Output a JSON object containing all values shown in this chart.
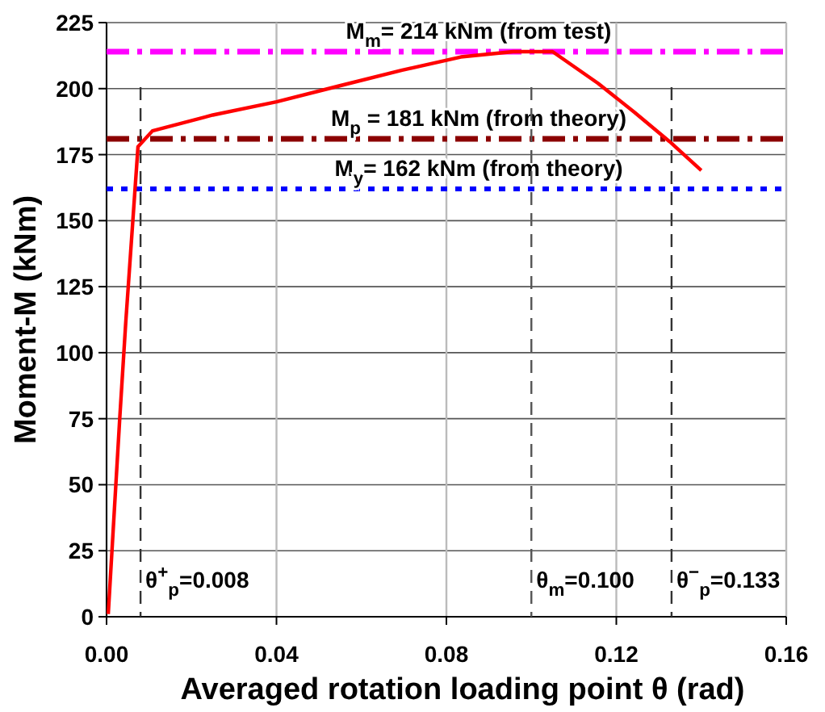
{
  "chart_data": {
    "type": "line",
    "xlabel": "Averaged rotation loading point θ (rad)",
    "ylabel": "Moment-M (kNm)",
    "xlim": [
      0,
      0.16
    ],
    "xticks": [
      {
        "value": 0,
        "label": "0.00"
      },
      0.04,
      0.08,
      0.12,
      0.16
    ],
    "ylim": [
      0,
      225
    ],
    "yticks": [
      0,
      25,
      50,
      75,
      100,
      125,
      150,
      175,
      200,
      225
    ],
    "grid": true,
    "marker": "none",
    "series": [
      {
        "color": "#ff0000",
        "line_style": "solid",
        "x": [
          0.0004,
          0.0031,
          0.0045,
          0.0074,
          0.0108,
          0.025,
          0.04,
          0.0547,
          0.0696,
          0.0834,
          0.0957,
          0.105,
          0.1157,
          0.1243,
          0.1325,
          0.14
        ],
        "values": [
          1,
          75,
          111,
          178,
          184,
          190,
          195,
          201,
          207,
          212,
          214,
          214,
          202,
          191,
          180,
          169
        ]
      }
    ],
    "ref_lines": [
      {
        "axis": "y",
        "value": 214,
        "label": "M$_{m}$= 214 kNm (from test)",
        "color": "#ff00ff",
        "line_style": "dashed"
      },
      {
        "axis": "y",
        "value": 181,
        "label": "M$_{p}$ = 181 kNm (from theory)",
        "color": "#8b0000",
        "line_style": "dashed"
      },
      {
        "axis": "y",
        "value": 162,
        "label": "M$_{y}$= 162 kNm (from theory)",
        "color": "#0000ff",
        "line_style": "dotted"
      },
      {
        "axis": "x",
        "value": 0.008,
        "label": "θ$^{+}$$_{p}$=0.008",
        "color": "#333333",
        "line_style": "dashed"
      },
      {
        "axis": "x",
        "value": 0.1,
        "label": "θ$_{m}$=0.100",
        "color": "#555555",
        "line_style": "dashed"
      },
      {
        "axis": "x",
        "value": 0.133,
        "label": "θ$^{−}$$_{p}$=0.133",
        "color": "#333333",
        "line_style": "dashed"
      }
    ]
  }
}
